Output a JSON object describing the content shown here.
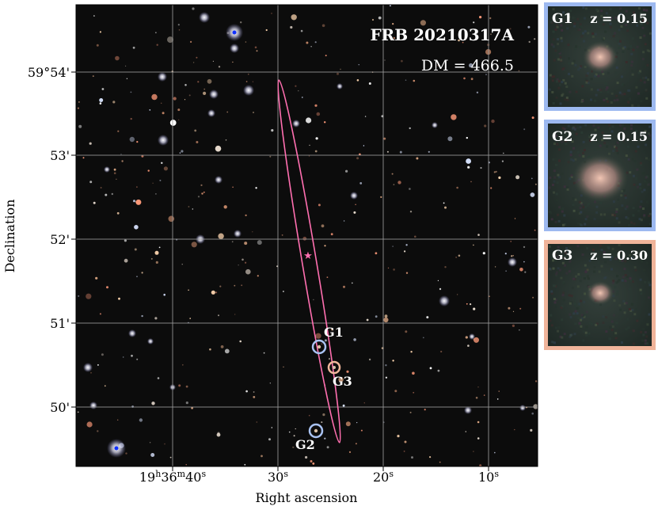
{
  "title": "FRB 20210317A",
  "dm_label": "DM = 466.5",
  "axes": {
    "xlabel": "Right ascension",
    "ylabel": "Declination",
    "dec_ticks": [
      "59°54'",
      "53'",
      "52'",
      "51'",
      "50'"
    ],
    "ra_ticks": [
      {
        "main": "19",
        "h": "h",
        "m_val": "36",
        "m": "m",
        "s_val": "40",
        "s": "s"
      },
      {
        "s_val": "30",
        "s": "s"
      },
      {
        "s_val": "20",
        "s": "s"
      },
      {
        "s_val": "10",
        "s": "s"
      }
    ]
  },
  "markers": [
    {
      "label": "G1",
      "color": "#a9c2f2"
    },
    {
      "label": "G3",
      "color": "#f1b79c"
    },
    {
      "label": "G2",
      "color": "#a9c2f2"
    }
  ],
  "insets": [
    {
      "name": "G1",
      "z": "z = 0.15",
      "border": "#9db9f0"
    },
    {
      "name": "G2",
      "z": "z = 0.15",
      "border": "#9db9f0"
    },
    {
      "name": "G3",
      "z": "z = 0.30",
      "border": "#f0b49a"
    }
  ],
  "colors": {
    "ellipse": "#ff6fb0",
    "grid": "#9a9a9a",
    "sky": "#0c0c0c"
  }
}
